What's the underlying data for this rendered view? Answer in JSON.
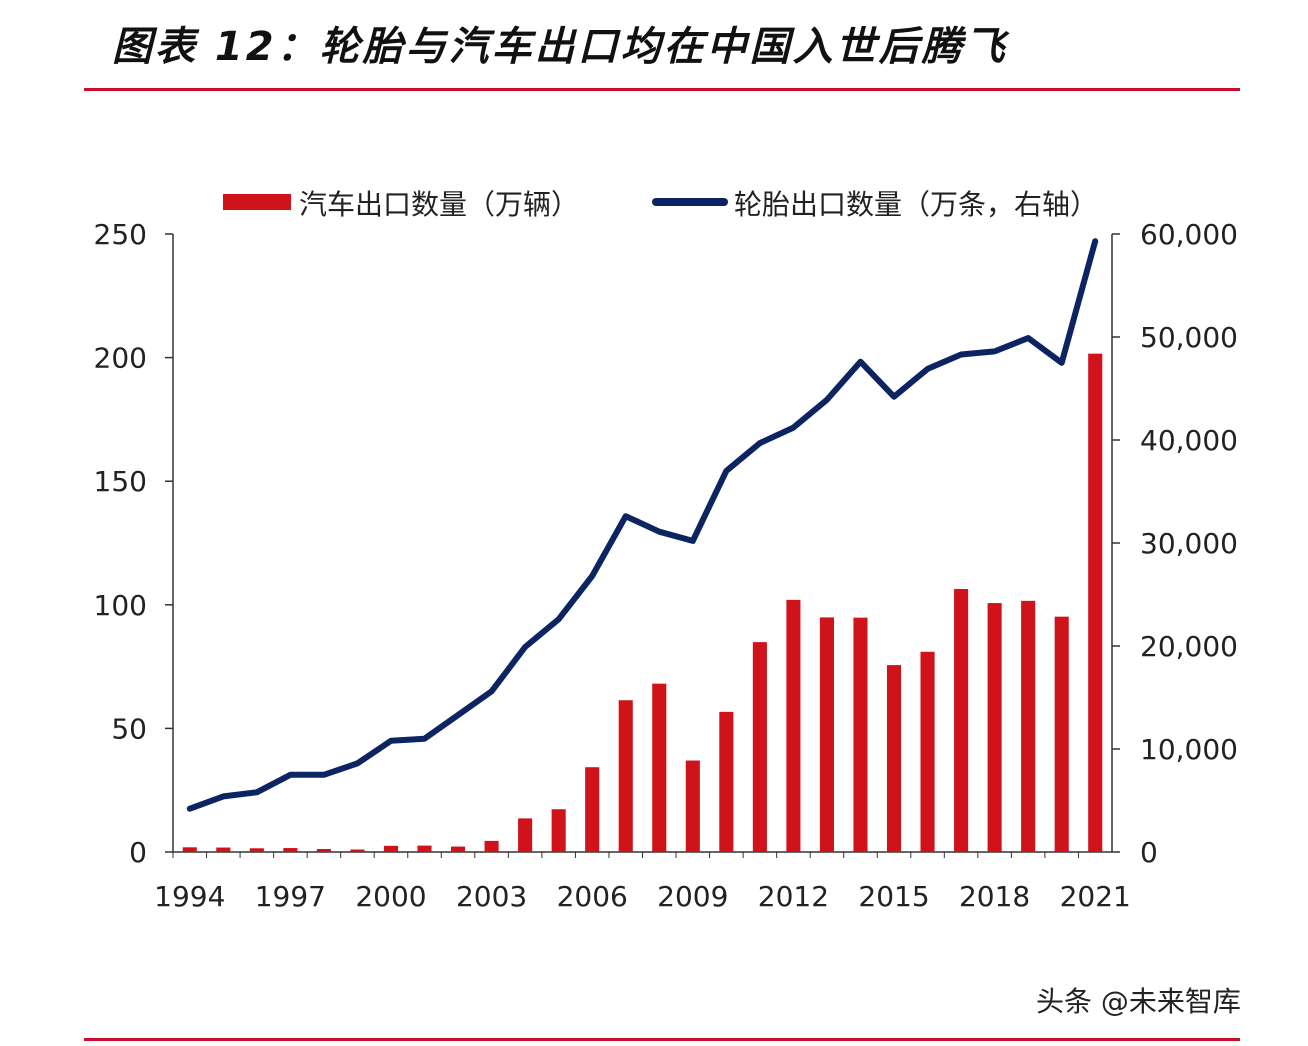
{
  "title": "图表 12：轮胎与汽车出口均在中国入世后腾飞",
  "watermark": "头条 @未来智库",
  "colors": {
    "bar": "#d0121b",
    "line": "#0d2463",
    "rule": "#c8102e"
  },
  "chart_data": {
    "type": "bar+line",
    "title": "",
    "legend": [
      "汽车出口数量（万辆）",
      "轮胎出口数量（万条，右轴）"
    ],
    "legend_position": "top",
    "x": [
      1994,
      1995,
      1996,
      1997,
      1998,
      1999,
      2000,
      2001,
      2002,
      2003,
      2004,
      2005,
      2006,
      2007,
      2008,
      2009,
      2010,
      2011,
      2012,
      2013,
      2014,
      2015,
      2016,
      2017,
      2018,
      2019,
      2020,
      2021
    ],
    "x_tick_labels": [
      "1994",
      "1997",
      "2000",
      "2003",
      "2006",
      "2009",
      "2012",
      "2015",
      "2018",
      "2021"
    ],
    "series": [
      {
        "name": "汽车出口数量（万辆）",
        "type": "bar",
        "axis": "left",
        "values": [
          1.9,
          1.8,
          1.5,
          1.6,
          1.2,
          1.0,
          2.5,
          2.6,
          2.2,
          4.5,
          13.6,
          17.3,
          34.3,
          61.4,
          68.1,
          37.0,
          56.7,
          84.9,
          102.0,
          94.9,
          94.8,
          75.6,
          81.0,
          106.4,
          100.7,
          101.6,
          95.2,
          201.6
        ]
      },
      {
        "name": "轮胎出口数量（万条，右轴）",
        "type": "line",
        "axis": "right",
        "values": [
          4200,
          5400,
          5800,
          7500,
          7500,
          8600,
          10800,
          11000,
          13300,
          15600,
          19900,
          22600,
          26800,
          32600,
          31100,
          30200,
          37000,
          39700,
          41200,
          43900,
          47600,
          44200,
          46900,
          48300,
          48600,
          49900,
          47500,
          59300
        ]
      }
    ],
    "y_left": {
      "ylim": [
        0,
        250
      ],
      "ticks": [
        0,
        50,
        100,
        150,
        200,
        250
      ],
      "tick_labels": [
        "0",
        "50",
        "100",
        "150",
        "200",
        "250"
      ]
    },
    "y_right": {
      "ylim": [
        0,
        60000
      ],
      "ticks": [
        0,
        10000,
        20000,
        30000,
        40000,
        50000,
        60000
      ],
      "tick_labels": [
        "0",
        "10,000",
        "20,000",
        "30,000",
        "40,000",
        "50,000",
        "60,000"
      ]
    },
    "grid": false
  }
}
